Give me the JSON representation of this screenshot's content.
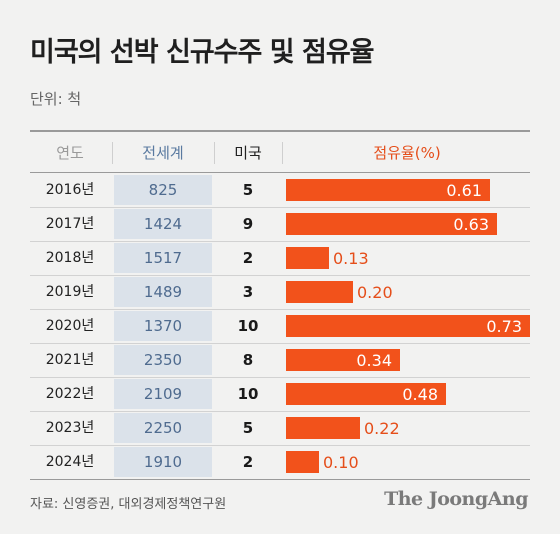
{
  "title": "미국의 선박 신규수주 및 점유율",
  "unit": "단위: 척",
  "headers": {
    "year": "연도",
    "world": "전세계",
    "us": "미국",
    "share": "점유율(%)"
  },
  "chart_data": {
    "type": "table",
    "columns": [
      "연도",
      "전세계",
      "미국",
      "점유율(%)"
    ],
    "rows": [
      {
        "year": "2016년",
        "world": "825",
        "us": "5",
        "share": 0.61,
        "share_label": "0.61"
      },
      {
        "year": "2017년",
        "world": "1424",
        "us": "9",
        "share": 0.63,
        "share_label": "0.63"
      },
      {
        "year": "2018년",
        "world": "1517",
        "us": "2",
        "share": 0.13,
        "share_label": "0.13"
      },
      {
        "year": "2019년",
        "world": "1489",
        "us": "3",
        "share": 0.2,
        "share_label": "0.20"
      },
      {
        "year": "2020년",
        "world": "1370",
        "us": "10",
        "share": 0.73,
        "share_label": "0.73"
      },
      {
        "year": "2021년",
        "world": "2350",
        "us": "8",
        "share": 0.34,
        "share_label": "0.34"
      },
      {
        "year": "2022년",
        "world": "2109",
        "us": "10",
        "share": 0.48,
        "share_label": "0.48"
      },
      {
        "year": "2023년",
        "world": "2250",
        "us": "5",
        "share": 0.22,
        "share_label": "0.22"
      },
      {
        "year": "2024년",
        "world": "1910",
        "us": "2",
        "share": 0.1,
        "share_label": "0.10"
      }
    ],
    "bar_color": "#f2521b"
  },
  "source": "자료: 신영증권, 대외경제정책연구원",
  "logo": "The JoongAng"
}
